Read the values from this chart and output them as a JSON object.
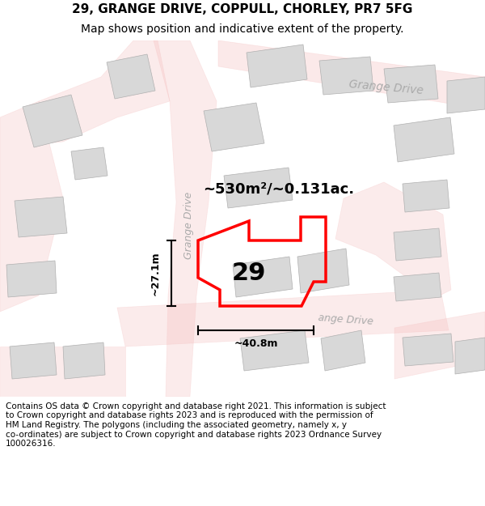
{
  "title": "29, GRANGE DRIVE, COPPULL, CHORLEY, PR7 5FG",
  "subtitle": "Map shows position and indicative extent of the property.",
  "footer_lines": [
    "Contains OS data © Crown copyright and database right 2021. This information is subject",
    "to Crown copyright and database rights 2023 and is reproduced with the permission of",
    "HM Land Registry. The polygons (including the associated geometry, namely x, y",
    "co-ordinates) are subject to Crown copyright and database rights 2023 Ordnance Survey",
    "100026316."
  ],
  "area_label": "~530m²/~0.131ac.",
  "width_label": "~40.8m",
  "height_label": "~27.1m",
  "plot_number": "29",
  "road_label_top": "Grange Drive",
  "road_label_mid": "Grange Drive",
  "road_label_bot": "ange Drive",
  "bg_color": "#ffffff",
  "map_bg": "#f8f8f8",
  "building_color": "#d8d8d8",
  "building_edge": "#b0b0b0",
  "road_outline_color": "#f4b8b8",
  "plot_color": "#ff0000",
  "title_fontsize": 11,
  "subtitle_fontsize": 10,
  "footer_fontsize": 7.5,
  "road_label_color": "#aaaaaa"
}
